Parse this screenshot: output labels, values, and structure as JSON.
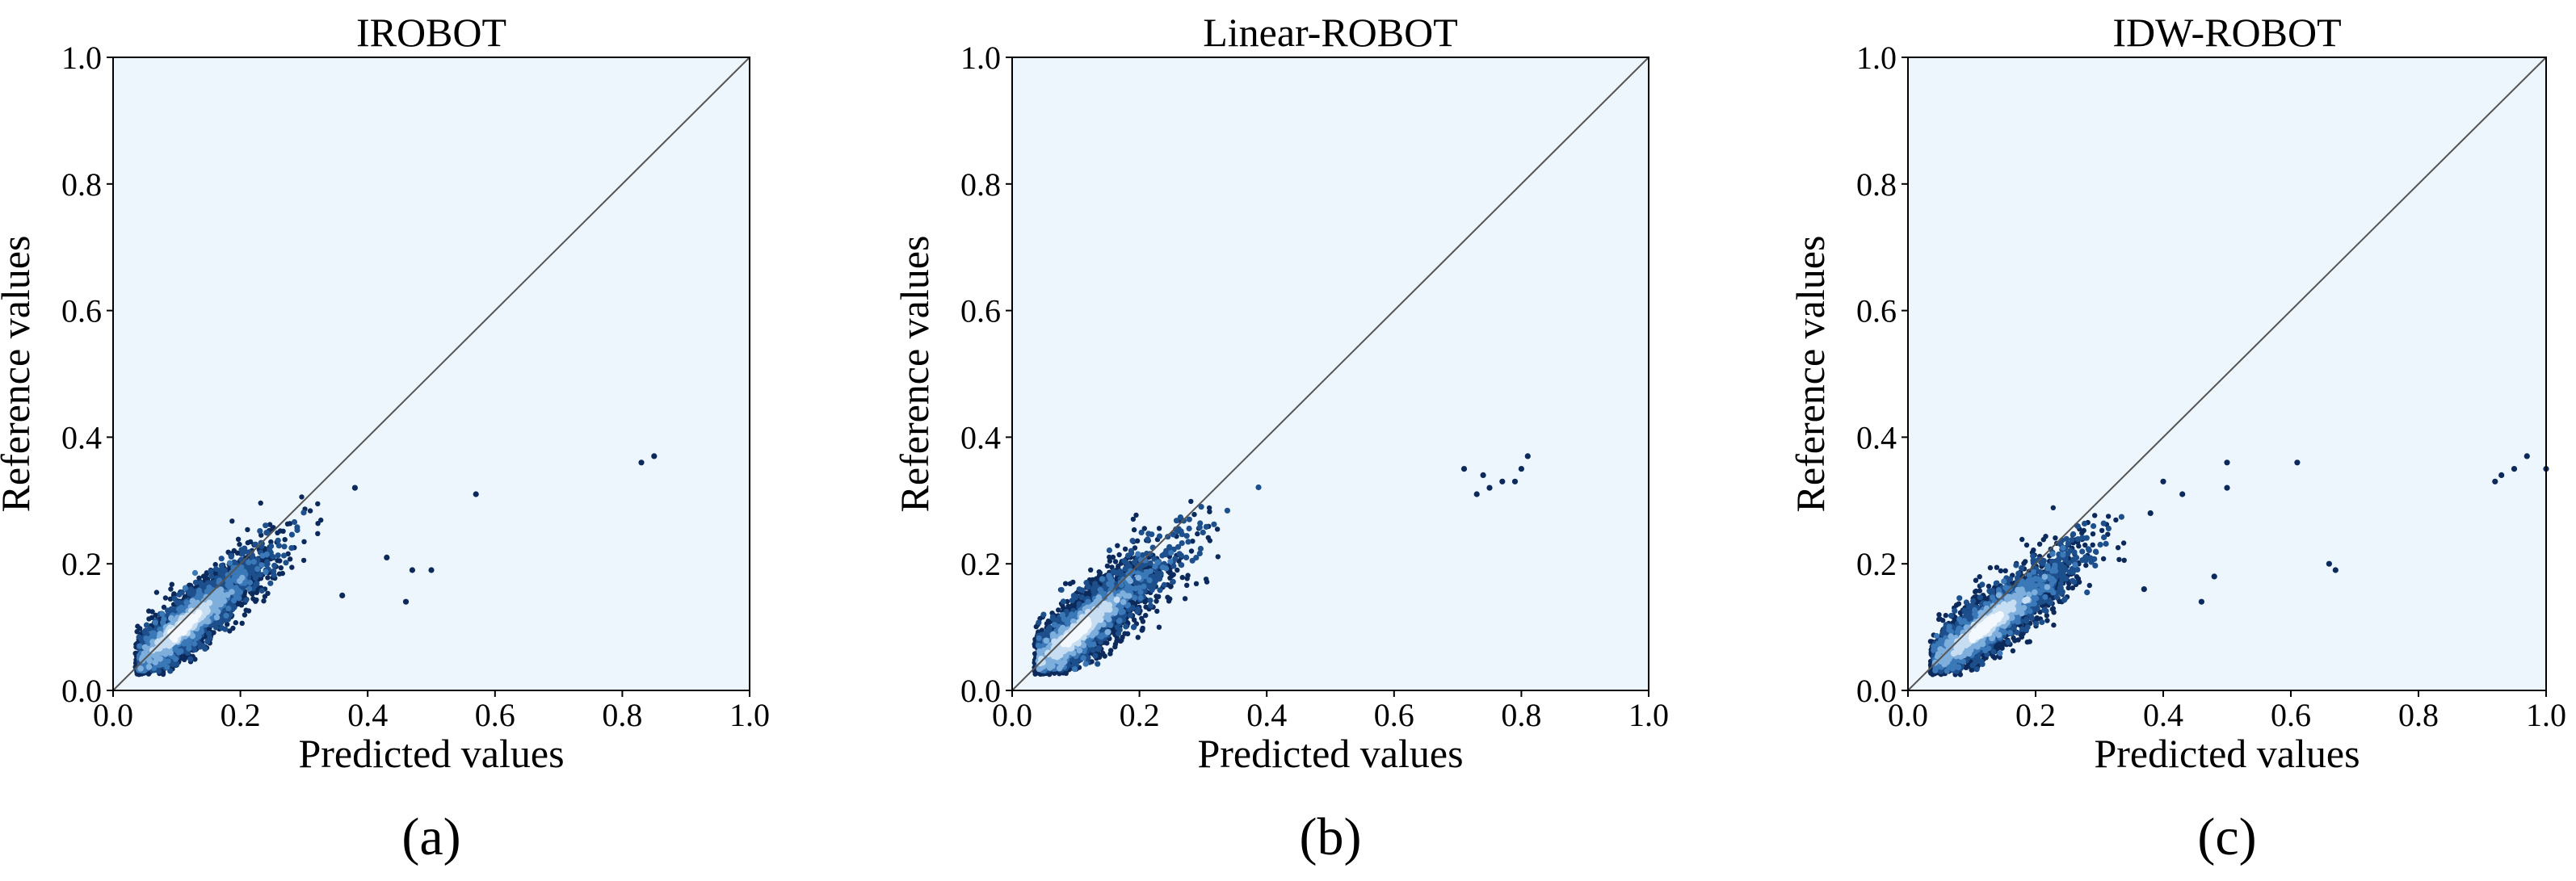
{
  "chart_data": [
    {
      "type": "scatter",
      "panel_label": "(a)",
      "title": "IROBOT",
      "xlabel": "Predicted values",
      "ylabel": "Reference values",
      "xlim": [
        0,
        1
      ],
      "ylim": [
        0,
        1
      ],
      "xticks": [
        "0.0",
        "0.2",
        "0.4",
        "0.6",
        "0.8",
        "1.0"
      ],
      "yticks": [
        "0.0",
        "0.2",
        "0.4",
        "0.6",
        "0.8",
        "1.0"
      ],
      "reference_line": "y = x",
      "density_cloud": {
        "center": [
          0.11,
          0.1
        ],
        "spread_x": 0.045,
        "spread_y": 0.04,
        "correlation": 0.88,
        "upper_tail": [
          0.33,
          0.35
        ]
      },
      "outliers": [
        {
          "x": 0.36,
          "y": 0.15
        },
        {
          "x": 0.38,
          "y": 0.32
        },
        {
          "x": 0.43,
          "y": 0.21
        },
        {
          "x": 0.46,
          "y": 0.14
        },
        {
          "x": 0.47,
          "y": 0.19
        },
        {
          "x": 0.5,
          "y": 0.19
        },
        {
          "x": 0.57,
          "y": 0.31
        },
        {
          "x": 0.83,
          "y": 0.36
        },
        {
          "x": 0.85,
          "y": 0.37
        }
      ]
    },
    {
      "type": "scatter",
      "panel_label": "(b)",
      "title": "Linear-ROBOT",
      "xlabel": "Predicted values",
      "ylabel": "Reference values",
      "xlim": [
        0,
        1
      ],
      "ylim": [
        0,
        1
      ],
      "xticks": [
        "0.0",
        "0.2",
        "0.4",
        "0.6",
        "0.8",
        "1.0"
      ],
      "yticks": [
        "0.0",
        "0.2",
        "0.4",
        "0.6",
        "0.8",
        "1.0"
      ],
      "reference_line": "y = x",
      "density_cloud": {
        "center": [
          0.1,
          0.09
        ],
        "spread_x": 0.05,
        "spread_y": 0.045,
        "correlation": 0.85,
        "upper_tail": [
          0.35,
          0.36
        ]
      },
      "outliers": [
        {
          "x": 0.71,
          "y": 0.35
        },
        {
          "x": 0.74,
          "y": 0.34
        },
        {
          "x": 0.75,
          "y": 0.32
        },
        {
          "x": 0.77,
          "y": 0.33
        },
        {
          "x": 0.79,
          "y": 0.33
        },
        {
          "x": 0.8,
          "y": 0.35
        },
        {
          "x": 0.81,
          "y": 0.37
        },
        {
          "x": 0.73,
          "y": 0.31
        }
      ]
    },
    {
      "type": "scatter",
      "panel_label": "(c)",
      "title": "IDW-ROBOT",
      "xlabel": "Predicted values",
      "ylabel": "Reference values",
      "xlim": [
        0,
        1
      ],
      "ylim": [
        0,
        1
      ],
      "xticks": [
        "0.0",
        "0.2",
        "0.4",
        "0.6",
        "0.8",
        "1.0"
      ],
      "yticks": [
        "0.0",
        "0.2",
        "0.4",
        "0.6",
        "0.8",
        "1.0"
      ],
      "reference_line": "y = x",
      "density_cloud": {
        "center": [
          0.12,
          0.1
        ],
        "spread_x": 0.05,
        "spread_y": 0.04,
        "correlation": 0.87,
        "upper_tail": [
          0.35,
          0.35
        ]
      },
      "outliers": [
        {
          "x": 0.37,
          "y": 0.16
        },
        {
          "x": 0.38,
          "y": 0.28
        },
        {
          "x": 0.4,
          "y": 0.33
        },
        {
          "x": 0.43,
          "y": 0.31
        },
        {
          "x": 0.46,
          "y": 0.14
        },
        {
          "x": 0.48,
          "y": 0.18
        },
        {
          "x": 0.5,
          "y": 0.32
        },
        {
          "x": 0.5,
          "y": 0.36
        },
        {
          "x": 0.61,
          "y": 0.36
        },
        {
          "x": 0.66,
          "y": 0.2
        },
        {
          "x": 0.67,
          "y": 0.19
        },
        {
          "x": 0.92,
          "y": 0.33
        },
        {
          "x": 0.93,
          "y": 0.34
        },
        {
          "x": 0.95,
          "y": 0.35
        },
        {
          "x": 0.97,
          "y": 0.37
        },
        {
          "x": 1.0,
          "y": 0.35
        }
      ]
    }
  ]
}
